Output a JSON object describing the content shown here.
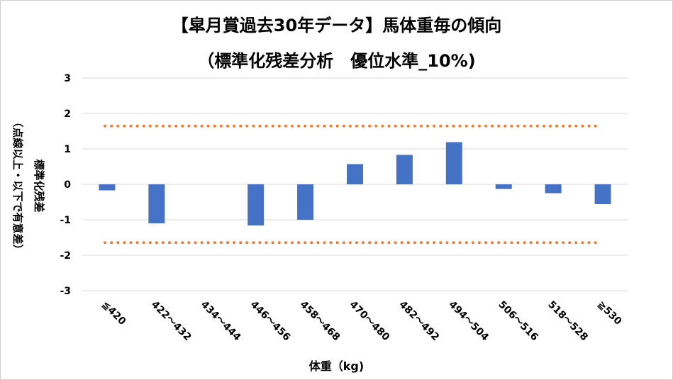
{
  "chart_data": {
    "type": "bar",
    "title": "【皐月賞過去30年データ】馬体重毎の傾向",
    "subtitle": "（標準化残差分析　優位水準_10%)",
    "xlabel": "体重（kg)",
    "ylabel_line1": "標準化残差",
    "ylabel_line2": "（点線以上・以下で有意差）",
    "categories": [
      "≦420",
      "422～432",
      "434～444",
      "446～456",
      "458～468",
      "470～480",
      "482～492",
      "494～504",
      "506～516",
      "518～528",
      "≧530"
    ],
    "values": [
      -0.17,
      -1.1,
      0,
      -1.16,
      -1.0,
      0.57,
      0.83,
      1.19,
      -0.13,
      -0.25,
      -0.56
    ],
    "ylim": [
      -3,
      3
    ],
    "yticks": [
      "3",
      "2",
      "1",
      "0",
      "-1",
      "-2",
      "-3"
    ],
    "threshold_upper": 1.645,
    "threshold_lower": -1.645,
    "bar_color": "#4472c4",
    "threshold_color": "#ed7d31",
    "grid": true
  }
}
